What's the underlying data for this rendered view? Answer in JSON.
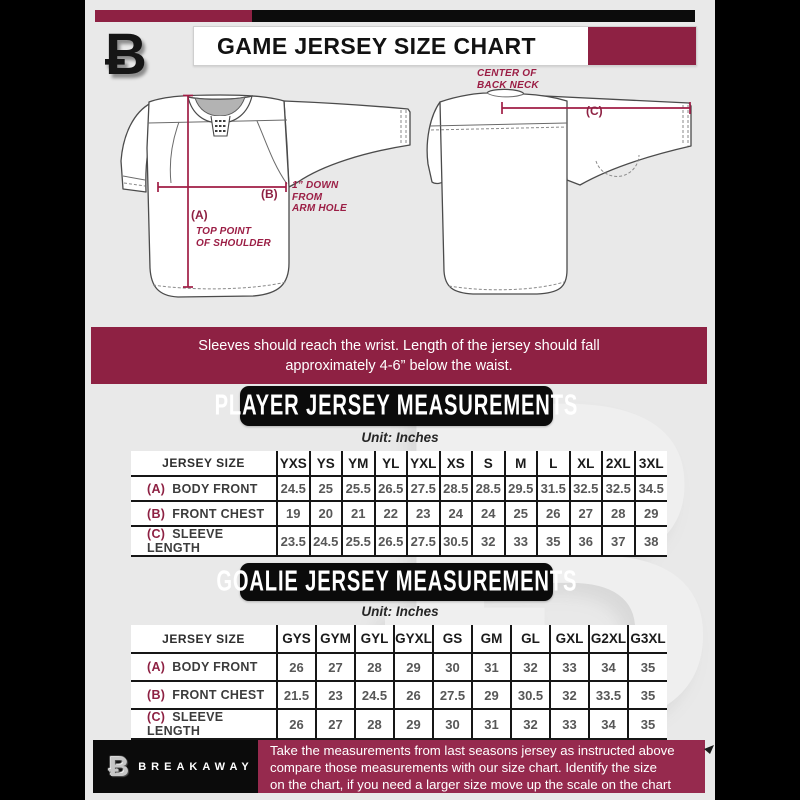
{
  "header": {
    "title": "GAME JERSEY SIZE CHART",
    "logo_glyph": "Ƀ"
  },
  "diagram_labels": {
    "front": {
      "a_tag": "(A)",
      "a_note_line1": "TOP POINT",
      "a_note_line2": "OF SHOULDER",
      "b_tag": "(B)",
      "b_note_line1": "1” DOWN",
      "b_note_line2": "FROM",
      "b_note_line3": "ARM HOLE"
    },
    "back": {
      "c_tag": "(C)",
      "c_note_line1": "CENTER OF",
      "c_note_line2": "BACK NECK"
    }
  },
  "notice": {
    "line1": "Sleeves should reach the wrist. Length of the jersey should fall",
    "line2": "approximately 4-6” below the waist."
  },
  "player": {
    "title": "PLAYER JERSEY MEASUREMENTS",
    "unit": "Unit: Inches",
    "table": {
      "header": [
        "JERSEY SIZE",
        "YXS",
        "YS",
        "YM",
        "YL",
        "YXL",
        "XS",
        "S",
        "M",
        "L",
        "XL",
        "2XL",
        "3XL"
      ],
      "rows": [
        {
          "prefix": "(A)",
          "label": "BODY FRONT",
          "values": [
            "24.5",
            "25",
            "25.5",
            "26.5",
            "27.5",
            "28.5",
            "28.5",
            "29.5",
            "31.5",
            "32.5",
            "32.5",
            "34.5"
          ]
        },
        {
          "prefix": "(B)",
          "label": "FRONT CHEST",
          "values": [
            "19",
            "20",
            "21",
            "22",
            "23",
            "24",
            "24",
            "25",
            "26",
            "27",
            "28",
            "29"
          ]
        },
        {
          "prefix": "(C)",
          "label": "SLEEVE LENGTH",
          "values": [
            "23.5",
            "24.5",
            "25.5",
            "26.5",
            "27.5",
            "30.5",
            "32",
            "33",
            "35",
            "36",
            "37",
            "38"
          ]
        }
      ]
    }
  },
  "goalie": {
    "title": "GOALIE JERSEY MEASUREMENTS",
    "unit": "Unit: Inches",
    "table": {
      "header": [
        "JERSEY SIZE",
        "GYS",
        "GYM",
        "GYL",
        "GYXL",
        "GS",
        "GM",
        "GL",
        "GXL",
        "G2XL",
        "G3XL"
      ],
      "rows": [
        {
          "prefix": "(A)",
          "label": "BODY FRONT",
          "values": [
            "26",
            "27",
            "28",
            "29",
            "30",
            "31",
            "32",
            "33",
            "34",
            "35"
          ]
        },
        {
          "prefix": "(B)",
          "label": "FRONT CHEST",
          "values": [
            "21.5",
            "23",
            "24.5",
            "26",
            "27.5",
            "29",
            "30.5",
            "32",
            "33.5",
            "35"
          ]
        },
        {
          "prefix": "(C)",
          "label": "SLEEVE LENGTH",
          "values": [
            "26",
            "27",
            "28",
            "29",
            "30",
            "31",
            "32",
            "33",
            "34",
            "35"
          ]
        }
      ]
    }
  },
  "footer": {
    "brand": "BREAKAWAY",
    "logo_glyph": "Ƀ",
    "lines": [
      "Take the measurements from last seasons jersey as instructed above",
      "compare those measurements  with our size chart. Identify the size",
      "on the chart, if you need a larger size move up the scale on the chart"
    ]
  },
  "colors": {
    "maroon": "#8e2143",
    "footer_maroon": "#962a4e",
    "banner_black": "#0b0b0b",
    "background": "#e9e9e9",
    "measure_line": "#a01d45"
  }
}
